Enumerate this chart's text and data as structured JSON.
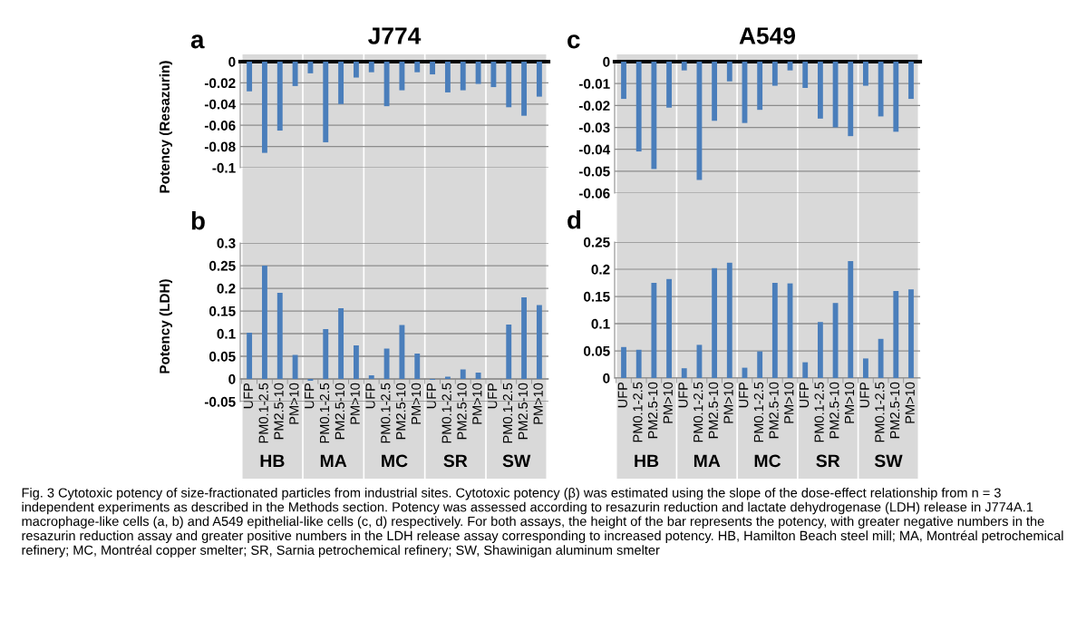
{
  "chart_data": [
    {
      "type": "bar",
      "title": "J774",
      "ylabel": "Potency (Resazurin)",
      "annotations": [
        "a",
        "Fig. 3 Cytotoxic potency of size-fractionated particles from industrial sites. Cytotoxic potency (β) was estimated using the slope of the dose-effect relationship from n = 3 independent experiments as described in the Methods section. Potency was assessed according to resazurin reduction and lactate dehydrogenase (LDH) release in J774A.1 macrophage-like cells (a, b) and A549 epithelial-like cells (c, d) respectively. For both assays, the height of the bar represents the potency, with greater negative numbers in the resazurin reduction assay and greater positive numbers in the LDH release assay corresponding to increased potency. HB, Hamilton Beach steel mill; MA, Montréal petrochemical refinery; MC, Montréal copper smelter; SR, Sarnia petrochemical refinery; SW, Shawinigan aluminum smelter"
      ],
      "categories": [
        null,
        null,
        null,
        null,
        null,
        null,
        null,
        null,
        null,
        null,
        null,
        null,
        null,
        null,
        null,
        null,
        null,
        null,
        null,
        null
      ],
      "values": [
        -0.028,
        -0.086,
        -0.065,
        -0.023,
        -0.011,
        -0.076,
        -0.04,
        -0.015,
        -0.01,
        -0.042,
        -0.027,
        -0.01,
        -0.012,
        -0.029,
        -0.027,
        -0.021,
        -0.024,
        -0.043,
        -0.051,
        -0.033
      ],
      "color": "#4a7ebb",
      "ylim": [
        -0.1,
        0
      ],
      "yticks": [
        0,
        -0.02,
        -0.04,
        -0.06,
        -0.08,
        -0.1
      ],
      "grid": "y",
      "tick_labels": "y"
    },
    {
      "type": "bar",
      "title": "A549",
      "annotations": [
        "c"
      ],
      "categories": [
        null,
        null,
        null,
        null,
        null,
        null,
        null,
        null,
        null,
        null,
        null,
        null,
        null,
        null,
        null,
        null,
        null,
        null,
        null,
        null
      ],
      "values": [
        -0.017,
        -0.041,
        -0.049,
        -0.021,
        -0.004,
        -0.054,
        -0.027,
        -0.009,
        -0.028,
        -0.022,
        -0.011,
        -0.004,
        -0.012,
        -0.026,
        -0.03,
        -0.034,
        -0.011,
        -0.025,
        -0.032,
        -0.017
      ],
      "color": "#4a7ebb",
      "ylim": [
        -0.06,
        0
      ],
      "yticks": [
        0,
        -0.01,
        -0.02,
        -0.03,
        -0.04,
        -0.05,
        -0.06
      ],
      "grid": "y",
      "tick_labels": "y"
    },
    {
      "type": "bar",
      "ylabel": "Potency (LDH)",
      "annotations": [
        "b",
        "HB",
        "MA",
        "MC",
        "SR",
        "SW"
      ],
      "categories": [
        "UFP",
        "PM0.1-2.5",
        "PM2.5-10",
        "PM>10",
        "UFP",
        "PM0.1-2.5",
        "PM2.5-10",
        "PM>10",
        "UFP",
        "PM0.1-2.5",
        "PM2.5-10",
        "PM>10",
        "UFP",
        "PM0.1-2.5",
        "PM2.5-10",
        "PM>10",
        "UFP",
        "PM0.1-2.5",
        "PM2.5-10",
        "PM>10"
      ],
      "values": [
        0.102,
        0.25,
        0.19,
        0.053,
        -0.004,
        0.11,
        0.156,
        0.074,
        0.008,
        0.067,
        0.119,
        0.056,
        -0.002,
        0.005,
        0.021,
        0.014,
        0,
        0.12,
        0.18,
        0.163
      ],
      "color": "#4a7ebb",
      "ylim": [
        -0.05,
        0.3
      ],
      "yticks": [
        -0.05,
        0,
        0.05,
        0.1,
        0.15,
        0.2,
        0.25,
        0.3
      ],
      "grid": "y"
    },
    {
      "type": "bar",
      "annotations": [
        "d",
        "HB",
        "MA",
        "MC",
        "SR",
        "SW"
      ],
      "categories": [
        "UFP",
        "PM0.1-2.5",
        "PM2.5-10",
        "PM>10",
        "UFP",
        "PM0.1-2.5",
        "PM2.5-10",
        "PM>10",
        "UFP",
        "PM0.1-2.5",
        "PM2.5-10",
        "PM>10",
        "UFP",
        "PM0.1-2.5",
        "PM2.5-10",
        "PM>10",
        "UFP",
        "PM0.1-2.5",
        "PM2.5-10",
        "PM>10"
      ],
      "values": [
        0.057,
        0.052,
        0.175,
        0.182,
        0.018,
        0.061,
        0.202,
        0.212,
        0.019,
        0.049,
        0.175,
        0.174,
        0.029,
        0.103,
        0.138,
        0.215,
        0.036,
        0.072,
        0.16,
        0.163
      ],
      "color": "#4a7ebb",
      "ylim": [
        0,
        0.25
      ],
      "yticks": [
        0,
        0.05,
        0.1,
        0.15,
        0.2,
        0.25
      ],
      "grid": "y"
    }
  ]
}
